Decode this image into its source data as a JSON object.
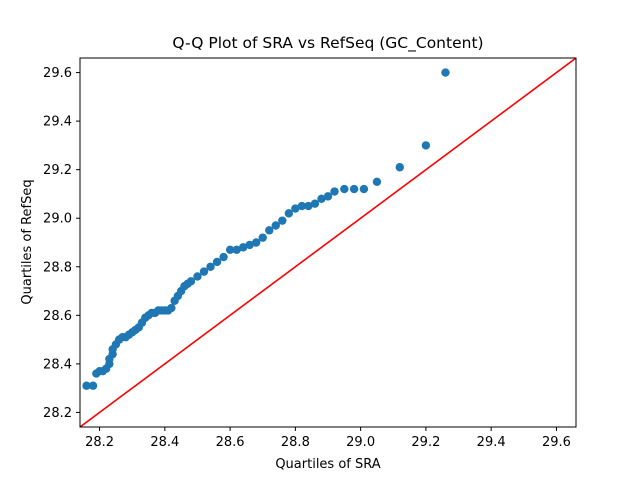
{
  "chart_data": {
    "type": "scatter",
    "title": "Q-Q Plot of SRA vs RefSeq (GC_Content)",
    "xlabel": "Quartiles of SRA",
    "ylabel": "Quartiles of RefSeq",
    "xlim": [
      28.14,
      29.66
    ],
    "ylim": [
      28.14,
      29.66
    ],
    "xticks": [
      "28.2",
      "28.4",
      "28.6",
      "28.8",
      "29.0",
      "29.2",
      "29.4",
      "29.6"
    ],
    "yticks": [
      "28.2",
      "28.4",
      "28.6",
      "28.8",
      "29.0",
      "29.2",
      "29.4",
      "29.6"
    ],
    "grid": false,
    "colors": {
      "points": "#1f77b4",
      "reference_line": "#ff0000"
    },
    "reference_line": {
      "from": [
        28.14,
        28.14
      ],
      "to": [
        29.66,
        29.66
      ]
    },
    "points": {
      "x": [
        28.16,
        28.18,
        28.19,
        28.2,
        28.21,
        28.22,
        28.23,
        28.23,
        28.24,
        28.24,
        28.25,
        28.26,
        28.27,
        28.28,
        28.29,
        28.3,
        28.31,
        28.32,
        28.33,
        28.34,
        28.35,
        28.36,
        28.37,
        28.38,
        28.39,
        28.4,
        28.41,
        28.42,
        28.43,
        28.44,
        28.45,
        28.46,
        28.47,
        28.48,
        28.5,
        28.52,
        28.54,
        28.56,
        28.58,
        28.6,
        28.62,
        28.64,
        28.66,
        28.68,
        28.7,
        28.72,
        28.74,
        28.76,
        28.78,
        28.8,
        28.82,
        28.84,
        28.86,
        28.88,
        28.9,
        28.92,
        28.95,
        28.98,
        29.01,
        29.05,
        29.12,
        29.2,
        29.26
      ],
      "y": [
        28.31,
        28.31,
        28.36,
        28.37,
        28.37,
        28.38,
        28.4,
        28.42,
        28.44,
        28.46,
        28.48,
        28.5,
        28.51,
        28.51,
        28.52,
        28.53,
        28.54,
        28.55,
        28.57,
        28.59,
        28.6,
        28.61,
        28.61,
        28.62,
        28.62,
        28.62,
        28.62,
        28.63,
        28.66,
        28.68,
        28.7,
        28.72,
        28.73,
        28.74,
        28.76,
        28.78,
        28.8,
        28.82,
        28.84,
        28.87,
        28.87,
        28.88,
        28.89,
        28.9,
        28.92,
        28.95,
        28.97,
        28.99,
        29.02,
        29.04,
        29.05,
        29.05,
        29.06,
        29.08,
        29.09,
        29.11,
        29.12,
        29.12,
        29.12,
        29.15,
        29.21,
        29.3,
        29.6
      ]
    }
  }
}
